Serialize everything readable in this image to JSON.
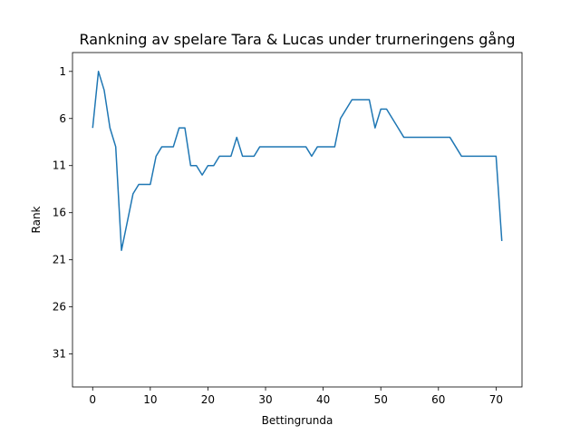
{
  "chart_data": {
    "type": "line",
    "title": "Rankning av spelare Tara & Lucas under trurneringens gång",
    "xlabel": "Bettingrunda",
    "ylabel": "Rank",
    "xlim": [
      -3.5,
      74.5
    ],
    "ylim": [
      34.5,
      -1
    ],
    "y_inverted": true,
    "grid": false,
    "x_ticks": [
      0,
      10,
      20,
      30,
      40,
      50,
      60,
      70
    ],
    "y_ticks": [
      1,
      6,
      11,
      16,
      21,
      26,
      31
    ],
    "series": [
      {
        "color": "#1f77b4",
        "x": [
          0,
          1,
          2,
          3,
          4,
          5,
          6,
          7,
          8,
          9,
          10,
          11,
          12,
          13,
          14,
          15,
          16,
          17,
          18,
          19,
          20,
          21,
          22,
          23,
          24,
          25,
          26,
          27,
          28,
          29,
          30,
          31,
          32,
          33,
          34,
          35,
          36,
          37,
          38,
          39,
          40,
          41,
          42,
          43,
          44,
          45,
          46,
          47,
          48,
          49,
          50,
          51,
          52,
          53,
          54,
          55,
          56,
          57,
          58,
          59,
          60,
          61,
          62,
          63,
          64,
          65,
          66,
          67,
          68,
          69,
          70,
          71
        ],
        "y": [
          7,
          1,
          3,
          7,
          9,
          20,
          17,
          14,
          13,
          13,
          13,
          10,
          9,
          9,
          9,
          7,
          7,
          11,
          11,
          12,
          11,
          11,
          10,
          10,
          10,
          8,
          10,
          10,
          10,
          9,
          9,
          9,
          9,
          9,
          9,
          9,
          9,
          9,
          10,
          9,
          9,
          9,
          9,
          6,
          5,
          4,
          4,
          4,
          4,
          7,
          5,
          5,
          6,
          7,
          8,
          8,
          8,
          8,
          8,
          8,
          8,
          8,
          8,
          9,
          10,
          10,
          10,
          10,
          10,
          10,
          10,
          19
        ]
      }
    ]
  }
}
